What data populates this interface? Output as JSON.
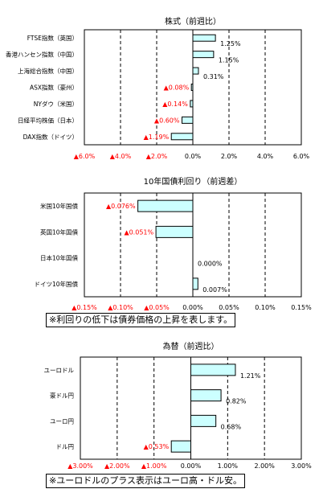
{
  "colors": {
    "bar_fill": "#ccffff",
    "bar_stroke": "#000000",
    "negative_text": "#ff0000",
    "positive_text": "#000000",
    "grid": "#000000"
  },
  "chart_data": [
    {
      "type": "bar",
      "orientation": "horizontal",
      "title": "株式（前週比）",
      "categories": [
        "FTSE指数（英国）",
        "香港ハンセン指数（中国）",
        "上海総合指数（中国）",
        "ASX指数（豪州）",
        "NYダウ（米国）",
        "日経平均株価（日本）",
        "DAX指数（ドイツ）"
      ],
      "values": [
        1.25,
        1.15,
        0.31,
        -0.08,
        -0.14,
        -0.6,
        -1.19
      ],
      "value_labels": [
        "1.25%",
        "1.15%",
        "0.31%",
        "▲0.08%",
        "▲0.14%",
        "▲0.60%",
        "▲1.19%"
      ],
      "xlim": [
        -6,
        6
      ],
      "ticks": [
        -6,
        -4,
        -2,
        0,
        2,
        4,
        6
      ],
      "tick_labels": [
        "▲6.0%",
        "▲4.0%",
        "▲2.0%",
        "0.0%",
        "2.0%",
        "4.0%",
        "6.0%"
      ],
      "grid": true
    },
    {
      "type": "bar",
      "orientation": "horizontal",
      "title": "10年国債利回り（前週差）",
      "categories": [
        "米国10年国債",
        "英国10年国債",
        "日本10年国債",
        "ドイツ10年国債"
      ],
      "values": [
        -0.076,
        -0.051,
        0.0,
        0.007
      ],
      "value_labels": [
        "▲0.076%",
        "▲0.051%",
        "0.000%",
        "0.007%"
      ],
      "xlim": [
        -0.15,
        0.15
      ],
      "ticks": [
        -0.15,
        -0.1,
        -0.05,
        0,
        0.05,
        0.1,
        0.15
      ],
      "tick_labels": [
        "▲0.15%",
        "▲0.10%",
        "▲0.05%",
        "0.00%",
        "0.05%",
        "0.10%",
        "0.15%"
      ],
      "grid": true,
      "note": "※利回りの低下は債券価格の上昇を表します。"
    },
    {
      "type": "bar",
      "orientation": "horizontal",
      "title": "為替（前週比）",
      "categories": [
        "ユーロドル",
        "豪ドル円",
        "ユーロ円",
        "ドル円"
      ],
      "values": [
        1.21,
        0.82,
        0.68,
        -0.53
      ],
      "value_labels": [
        "1.21%",
        "0.82%",
        "0.68%",
        "▲0.53%"
      ],
      "xlim": [
        -3,
        3
      ],
      "ticks": [
        -3,
        -2,
        -1,
        0,
        1,
        2,
        3
      ],
      "tick_labels": [
        "▲3.00%",
        "▲2.00%",
        "▲1.00%",
        "0.00%",
        "1.00%",
        "2.00%",
        "3.00%"
      ],
      "grid": true,
      "note": "※ユーロドルのプラス表示はユーロ高・ドル安。"
    }
  ]
}
